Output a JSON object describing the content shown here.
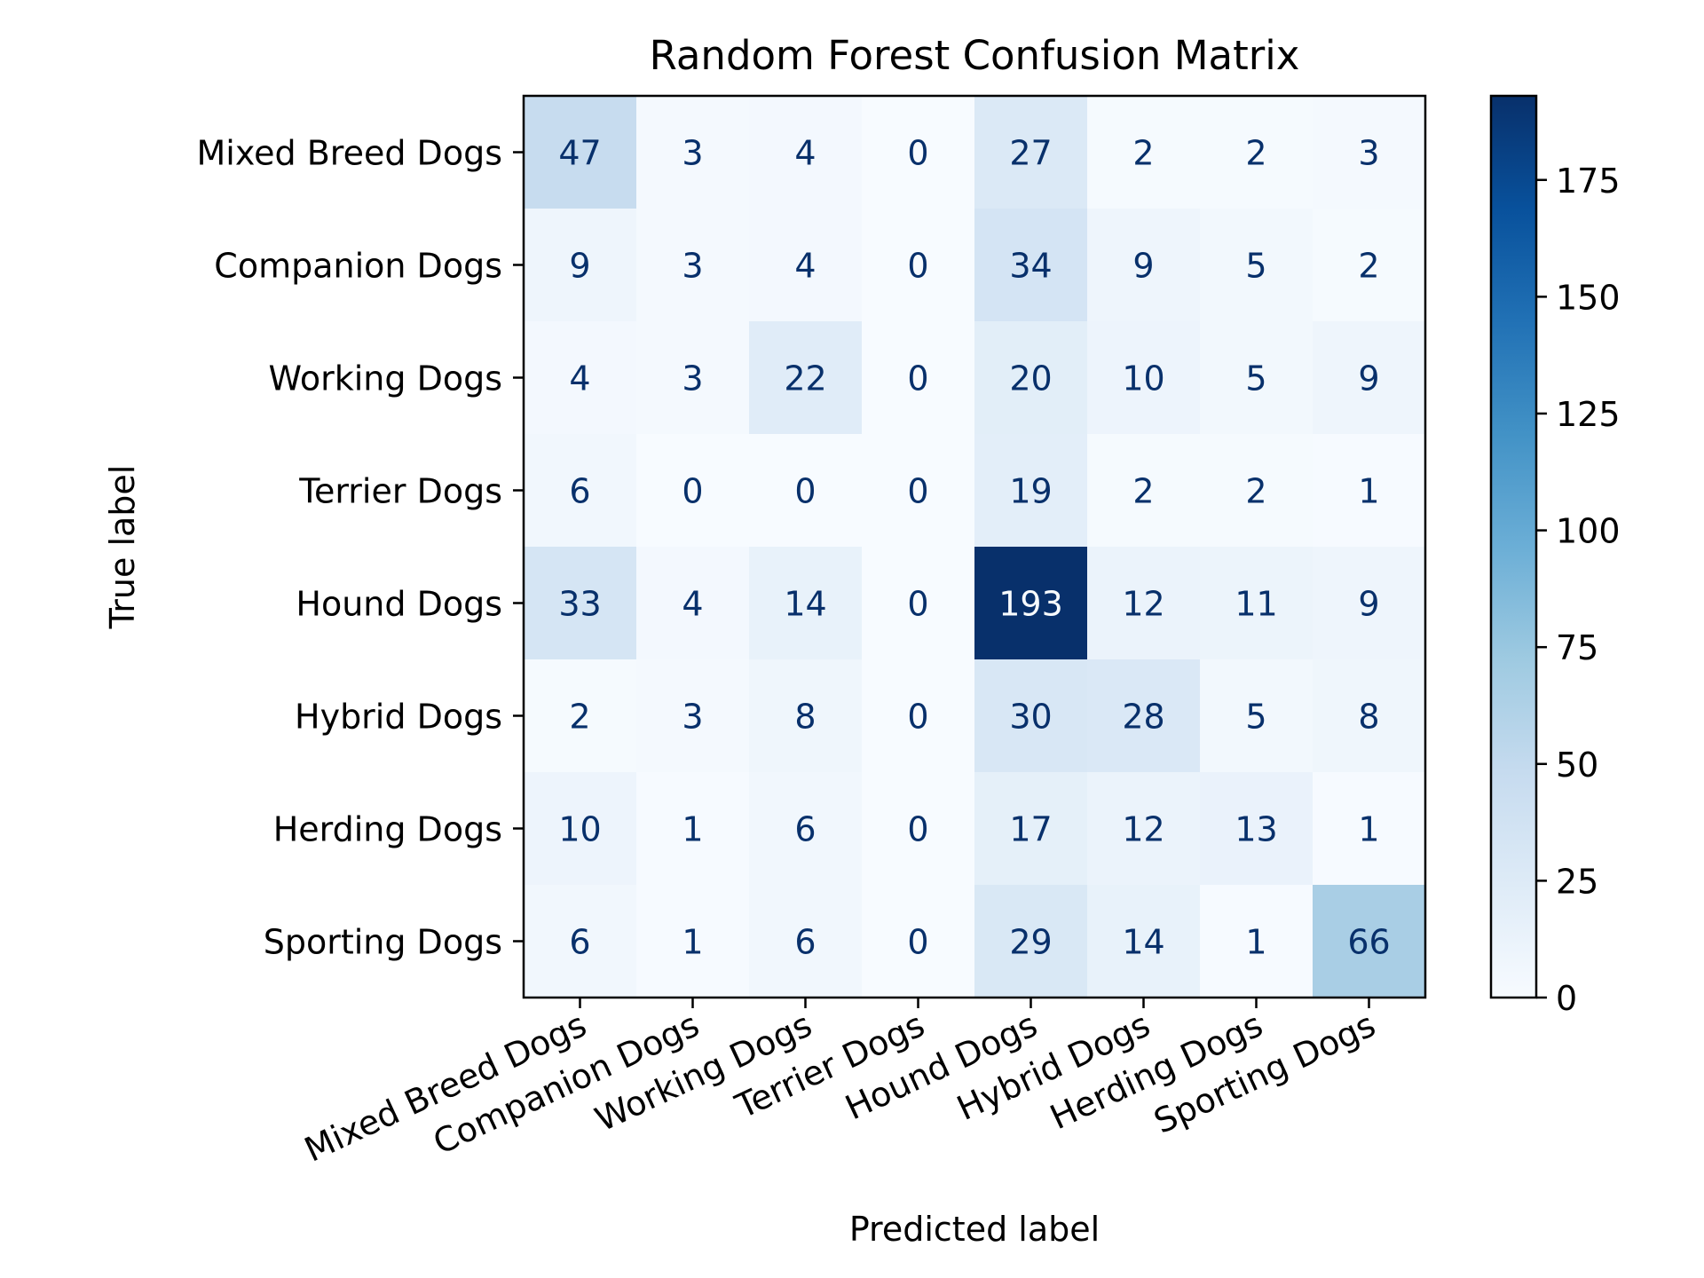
{
  "chart_data": {
    "type": "heatmap",
    "title": "Random Forest Confusion Matrix",
    "xlabel": "Predicted label",
    "ylabel": "True label",
    "x_categories": [
      "Mixed Breed Dogs",
      "Companion Dogs",
      "Working Dogs",
      "Terrier Dogs",
      "Hound Dogs",
      "Hybrid Dogs",
      "Herding Dogs",
      "Sporting Dogs"
    ],
    "y_categories": [
      "Mixed Breed Dogs",
      "Companion Dogs",
      "Working Dogs",
      "Terrier Dogs",
      "Hound Dogs",
      "Hybrid Dogs",
      "Herding Dogs",
      "Sporting Dogs"
    ],
    "matrix": [
      [
        47,
        3,
        4,
        0,
        27,
        2,
        2,
        3
      ],
      [
        9,
        3,
        4,
        0,
        34,
        9,
        5,
        2
      ],
      [
        4,
        3,
        22,
        0,
        20,
        10,
        5,
        9
      ],
      [
        6,
        0,
        0,
        0,
        19,
        2,
        2,
        1
      ],
      [
        33,
        4,
        14,
        0,
        193,
        12,
        11,
        9
      ],
      [
        2,
        3,
        8,
        0,
        30,
        28,
        5,
        8
      ],
      [
        10,
        1,
        6,
        0,
        17,
        12,
        13,
        1
      ],
      [
        6,
        1,
        6,
        0,
        29,
        14,
        1,
        66
      ]
    ],
    "colormap": "Blues",
    "colorbar": {
      "range": [
        0,
        193
      ],
      "ticks": [
        0,
        25,
        50,
        75,
        100,
        125,
        150,
        175
      ]
    },
    "colors": {
      "dark_text": "#08306b",
      "light_text": "#f7fbff"
    }
  }
}
